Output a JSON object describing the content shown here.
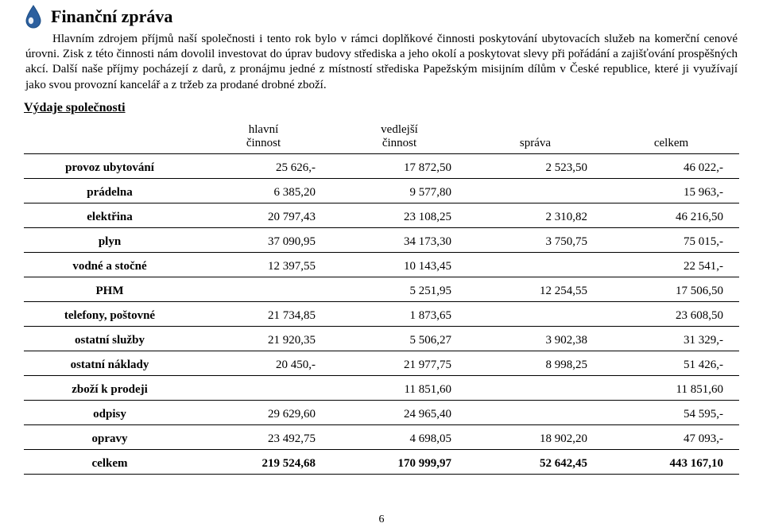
{
  "header": {
    "title": "Finanční zpráva",
    "icon_fill_top": "#2c5f9e",
    "icon_fill_bottom": "#ffffff",
    "icon_stroke": "#1b4d85"
  },
  "paragraphs": {
    "p1": "Hlavním zdrojem příjmů naší společnosti i tento rok bylo v rámci doplňkové činnosti poskytování ubytovacích služeb na komerční cenové úrovni. Zisk z této činnosti nám dovolil investovat do úprav budovy střediska a jeho okolí a poskytovat slevy při pořádání a zajišťování prospěšných akcí. Další naše příjmy pocházejí z darů, z pronájmu jedné z místností střediska Papežským misijním dílům v České republice, které ji využívají jako svou provozní kancelář a z tržeb za prodané drobné zboží."
  },
  "section_heading": "Výdaje společnosti",
  "table": {
    "headers": {
      "c1": "",
      "c2_line1": "hlavní",
      "c2_line2": "činnost",
      "c3_line1": "vedlejší",
      "c3_line2": "činnost",
      "c4": "správa",
      "c5": "celkem"
    },
    "rows": [
      {
        "label": "provoz ubytování",
        "c2": "25 626,-",
        "c3": "17 872,50",
        "c4": "2 523,50",
        "c5": "46 022,-"
      },
      {
        "label": "prádelna",
        "c2": "6 385,20",
        "c3": "9 577,80",
        "c4": "",
        "c5": "15 963,-"
      },
      {
        "label": "elektřina",
        "c2": "20 797,43",
        "c3": "23 108,25",
        "c4": "2 310,82",
        "c5": "46 216,50"
      },
      {
        "label": "plyn",
        "c2": "37 090,95",
        "c3": "34 173,30",
        "c4": "3 750,75",
        "c5": "75 015,-"
      },
      {
        "label": "vodné a stočné",
        "c2": "12 397,55",
        "c3": "10 143,45",
        "c4": "",
        "c5": "22 541,-"
      },
      {
        "label": "PHM",
        "c2": "",
        "c3": "5 251,95",
        "c4": "12 254,55",
        "c5": "17 506,50"
      },
      {
        "label": "telefony, poštovné",
        "c2": "21 734,85",
        "c3": "1 873,65",
        "c4": "",
        "c5": "23 608,50"
      },
      {
        "label": "ostatní služby",
        "c2": "21 920,35",
        "c3": "5 506,27",
        "c4": "3 902,38",
        "c5": "31 329,-"
      },
      {
        "label": "ostatní náklady",
        "c2": "20 450,-",
        "c3": "21 977,75",
        "c4": "8 998,25",
        "c5": "51 426,-"
      },
      {
        "label": "zboží k prodeji",
        "c2": "",
        "c3": "11 851,60",
        "c4": "",
        "c5": "11 851,60"
      },
      {
        "label": "odpisy",
        "c2": "29 629,60",
        "c3": "24 965,40",
        "c4": "",
        "c5": "54 595,-"
      },
      {
        "label": "opravy",
        "c2": "23 492,75",
        "c3": "4 698,05",
        "c4": "18 902,20",
        "c5": "47 093,-"
      }
    ],
    "total": {
      "label": "celkem",
      "c2": "219 524,68",
      "c3": "170 999,97",
      "c4": "52 642,45",
      "c5": "443 167,10"
    }
  },
  "page_number": "6"
}
